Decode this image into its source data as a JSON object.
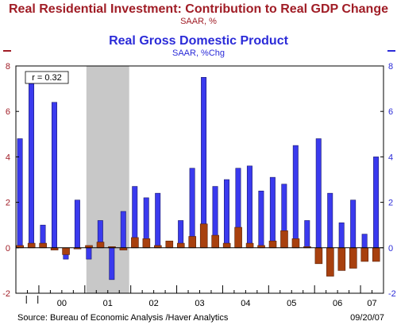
{
  "header": {
    "title_residential": "Real Residential Investment: Contribution to Real GDP Change",
    "subtitle_residential": "SAAR, %",
    "title_gdp": "Real Gross Domestic Product",
    "subtitle_gdp": "SAAR, %Chg"
  },
  "footer": {
    "source": "Source:  Bureau of Economic Analysis /Haver Analytics",
    "date": "09/20/07"
  },
  "colors": {
    "gdp": "#3a3aee",
    "residential": "#a8400e",
    "recession": "#c8c8c8",
    "left_axis": "#a01d26",
    "right_axis": "#2b2bd8"
  },
  "chart_data": {
    "type": "bar",
    "annotation": "r = 0.32",
    "ylim": [
      -2,
      8
    ],
    "yticks": [
      -2,
      0,
      2,
      4,
      6,
      8
    ],
    "year_labels": [
      "00",
      "01",
      "02",
      "03",
      "04",
      "05",
      "06",
      "07"
    ],
    "categories": [
      "1999Q3",
      "1999Q4",
      "2000Q1",
      "2000Q2",
      "2000Q3",
      "2000Q4",
      "2001Q1",
      "2001Q2",
      "2001Q3",
      "2001Q4",
      "2002Q1",
      "2002Q2",
      "2002Q3",
      "2002Q4",
      "2003Q1",
      "2003Q2",
      "2003Q3",
      "2003Q4",
      "2004Q1",
      "2004Q2",
      "2004Q3",
      "2004Q4",
      "2005Q1",
      "2005Q2",
      "2005Q3",
      "2005Q4",
      "2006Q1",
      "2006Q2",
      "2006Q3",
      "2006Q4",
      "2007Q1",
      "2007Q2"
    ],
    "recession": [
      "2001Q1",
      "2001Q4"
    ],
    "series": [
      {
        "values": [
          4.8,
          7.3,
          1.0,
          6.4,
          -0.5,
          2.1,
          -0.5,
          1.2,
          -1.4,
          1.6,
          2.7,
          2.2,
          2.4,
          0.2,
          1.2,
          3.5,
          7.5,
          2.7,
          3.0,
          3.5,
          3.6,
          2.5,
          3.1,
          2.8,
          4.5,
          1.2,
          4.8,
          2.4,
          1.1,
          2.1,
          0.6,
          4.0
        ]
      },
      {
        "values": [
          0.1,
          0.2,
          0.2,
          -0.1,
          -0.3,
          -0.05,
          0.1,
          0.25,
          0.05,
          -0.1,
          0.45,
          0.4,
          0.1,
          0.3,
          0.2,
          0.5,
          1.05,
          0.55,
          0.2,
          0.9,
          0.2,
          0.1,
          0.3,
          0.75,
          0.4,
          0.05,
          -0.7,
          -1.25,
          -1.0,
          -0.9,
          -0.6,
          -0.6
        ]
      }
    ]
  }
}
